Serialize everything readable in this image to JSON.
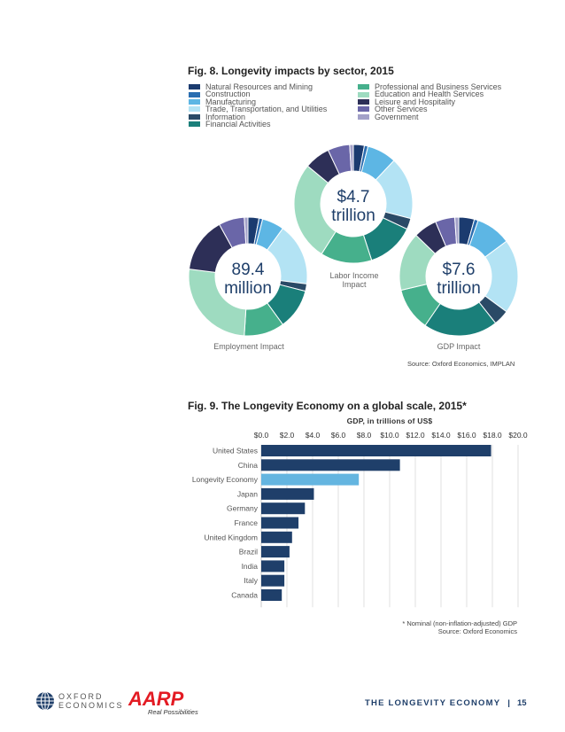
{
  "fig8": {
    "title": "Fig. 8. Longevity impacts by sector, 2015",
    "legend": [
      {
        "label": "Natural Resources and Mining",
        "color": "#1b3b6f"
      },
      {
        "label": "Construction",
        "color": "#2a6db0"
      },
      {
        "label": "Manufacturing",
        "color": "#5db6e4"
      },
      {
        "label": "Trade, Transportation, and Utilities",
        "color": "#b3e3f4"
      },
      {
        "label": "Information",
        "color": "#2a4a66"
      },
      {
        "label": "Financial Activities",
        "color": "#1a7f7a"
      },
      {
        "label": "Professional and Business Services",
        "color": "#46b08c"
      },
      {
        "label": "Education and Health Services",
        "color": "#9edbc0"
      },
      {
        "label": "Leisure and Hospitality",
        "color": "#2d2f57"
      },
      {
        "label": "Other Services",
        "color": "#6a66a8"
      },
      {
        "label": "Government",
        "color": "#a3a1c8"
      }
    ],
    "source": "Source: Oxford Economics, IMPLAN"
  },
  "chart_data": [
    {
      "type": "pie",
      "name": "Labor Income Impact",
      "center_value": "$4.7",
      "center_unit": "trillion",
      "label_line1": "Labor Income",
      "label_line2": "Impact",
      "categories": [
        "Natural Resources and Mining",
        "Construction",
        "Manufacturing",
        "Trade, Transportation, and Utilities",
        "Information",
        "Financial Activities",
        "Professional and Business Services",
        "Education and Health Services",
        "Leisure and Hospitality",
        "Other Services",
        "Government"
      ],
      "values": [
        3,
        1,
        8,
        17,
        3,
        13,
        14,
        27,
        7,
        6,
        1
      ]
    },
    {
      "type": "pie",
      "name": "Employment Impact",
      "center_value": "89.4",
      "center_unit": "million",
      "label_line1": "Employment Impact",
      "categories": [
        "Natural Resources and Mining",
        "Construction",
        "Manufacturing",
        "Trade, Transportation, and Utilities",
        "Information",
        "Financial Activities",
        "Professional and Business Services",
        "Education and Health Services",
        "Leisure and Hospitality",
        "Other Services",
        "Government"
      ],
      "values": [
        3,
        1,
        6,
        17,
        2,
        11,
        11,
        26,
        15,
        7,
        1
      ]
    },
    {
      "type": "pie",
      "name": "GDP Impact",
      "center_value": "$7.6",
      "center_unit": "trillion",
      "label_line1": "GDP Impact",
      "categories": [
        "Natural Resources and Mining",
        "Construction",
        "Manufacturing",
        "Trade, Transportation, and Utilities",
        "Information",
        "Financial Activities",
        "Professional and Business Services",
        "Education and Health Services",
        "Leisure and Hospitality",
        "Other Services",
        "Government"
      ],
      "values": [
        4,
        1,
        9,
        19,
        4,
        19,
        11,
        15,
        6,
        5,
        1
      ]
    },
    {
      "type": "bar",
      "orientation": "horizontal",
      "title": "Fig. 9. The Longevity Economy on a global scale, 2015*",
      "xlabel": "GDP, in trillions of US$",
      "xlim": [
        0,
        20
      ],
      "tick_labels": [
        "$0.0",
        "$2.0",
        "$4.0",
        "$6.0",
        "$8.0",
        "$10.0",
        "$12.0",
        "$14.0",
        "$16.0",
        "$18.0",
        "$20.0"
      ],
      "categories": [
        "United States",
        "China",
        "Longevity Economy",
        "Japan",
        "Germany",
        "France",
        "United Kingdom",
        "Brazil",
        "India",
        "Italy",
        "Canada"
      ],
      "values": [
        17.9,
        10.8,
        7.6,
        4.1,
        3.4,
        2.9,
        2.4,
        2.2,
        1.8,
        1.8,
        1.6
      ],
      "colors": [
        "#1f3f6a",
        "#1f3f6a",
        "#64b5e0",
        "#1f3f6a",
        "#1f3f6a",
        "#1f3f6a",
        "#1f3f6a",
        "#1f3f6a",
        "#1f3f6a",
        "#1f3f6a",
        "#1f3f6a"
      ],
      "grid": true,
      "footnote": "* Nominal (non-inflation-adjusted) GDP",
      "source": "Source: Oxford Economics"
    }
  ],
  "footer": {
    "oxford_logo_text1": "OXFORD",
    "oxford_logo_text2": "ECONOMICS",
    "aarp_logo_text": "AARP",
    "aarp_tagline": "Real Possibilities",
    "title": "THE LONGEVITY ECONOMY",
    "separator": "|",
    "page": "15"
  }
}
